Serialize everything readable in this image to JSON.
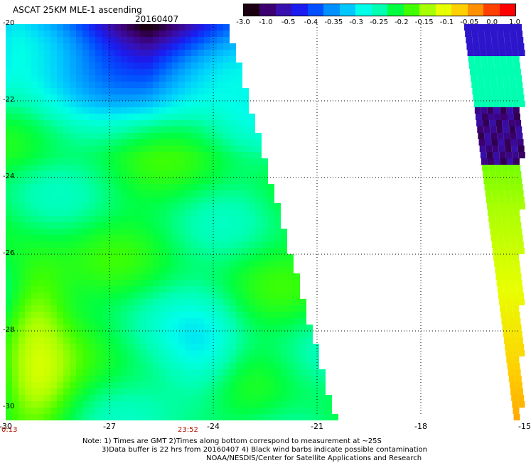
{
  "header": {
    "title": "ASCAT 25KM MLE-1 ascending",
    "date": "20160407"
  },
  "colorbar": {
    "labels": [
      "-3.0",
      "-1.0",
      "-0.5",
      "-0.4",
      "-0.35",
      "-0.3",
      "-0.25",
      "-0.2",
      "-0.15",
      "-0.1",
      "-0.05",
      "0.0",
      "1.0"
    ],
    "colors": [
      "#1a0010",
      "#3c0070",
      "#3810b0",
      "#1a1cf0",
      "#0050ff",
      "#0090ff",
      "#00c8ff",
      "#00ffe8",
      "#00ffb0",
      "#00ff40",
      "#40ff00",
      "#a8ff00",
      "#e8ff00",
      "#ffd000",
      "#ff9000",
      "#ff4000",
      "#ff0000"
    ]
  },
  "map": {
    "y_ticks": [
      "-20",
      "-22",
      "-24",
      "-26",
      "-28",
      "-30"
    ],
    "x_ticks": [
      "-30",
      "-27",
      "-24",
      "-21",
      "-18",
      "-15"
    ],
    "times": [
      "0:13",
      "23:52"
    ]
  },
  "footer": {
    "line1": "Note: 1) Times are GMT 2)Times along bottom correspond to measurement at ~25S",
    "line2": "3)Data buffer is 22 hrs from 20160407 4) Black wind barbs indicate possible contamination",
    "line3": "NOAA/NESDIS/Center for Satellite Applications and Research"
  }
}
